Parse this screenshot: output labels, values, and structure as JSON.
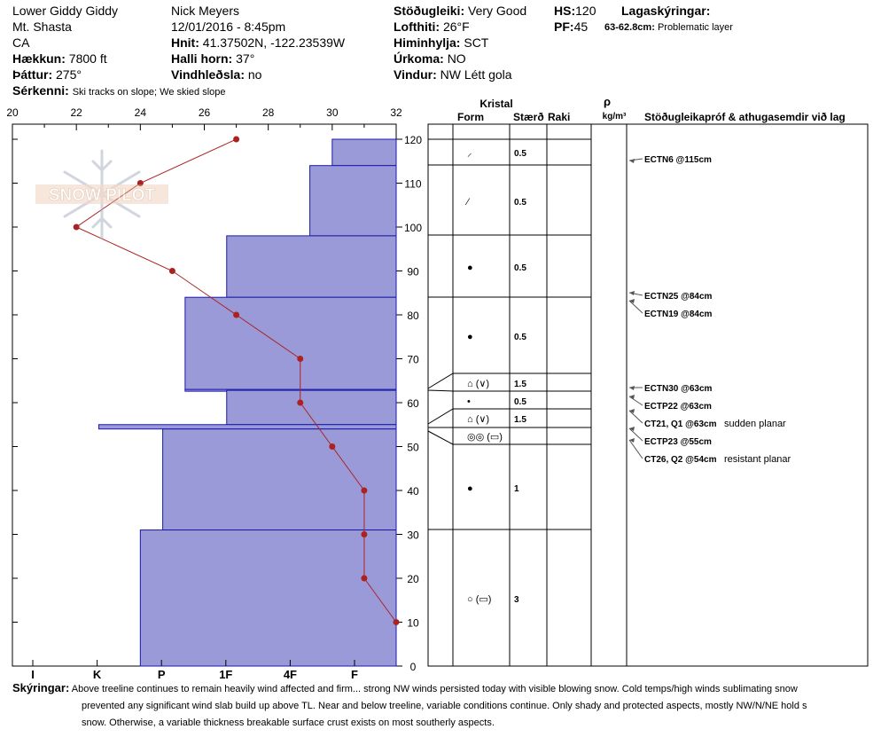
{
  "header": {
    "location": "Lower Giddy Giddy",
    "mountain": "Mt. Shasta",
    "state": "CA",
    "elevation_label": "Hækkun:",
    "elevation": "7800 ft",
    "aspect_label": "Þáttur:",
    "aspect": "275°",
    "observer": "Nick Meyers",
    "datetime": "12/01/2016 - 8:45pm",
    "coords_label": "Hnit:",
    "coords": "41.37502N, -122.23539W",
    "slope_label": "Halli horn:",
    "slope": "37°",
    "wind_loading_label": "Vindhleðsla:",
    "wind_loading": "no",
    "stability_label": "Stöðugleiki:",
    "stability": "Very Good",
    "air_temp_label": "Lofthiti:",
    "air_temp": "26°F",
    "sky_label": "Himinhylja:",
    "sky": "SCT",
    "precip_label": "Úrkoma:",
    "precip": "NO",
    "wind_label": "Vindur:",
    "wind": "NW Létt gola",
    "hs_label": "HS:",
    "hs": "120",
    "pf_label": "PF:",
    "pf": "45",
    "layers_label": "Lagaskýringar:",
    "layer_note_depth": "63-62.8cm:",
    "layer_note": "Problematic layer",
    "features_label": "Sérkenni:",
    "features": "Ski tracks on slope; We skied slope"
  },
  "logo_text": "SNOW PILOT",
  "table_headers": {
    "crystal": "Kristal",
    "form": "Form",
    "size": "Stærð",
    "moisture": "Raki",
    "rho": "ρ",
    "density_unit": "kg/m³",
    "tests": "Stöðugleikapróf & athugasemdir við lag"
  },
  "colors": {
    "hardness_fill": "#9a9ad8",
    "hardness_line": "#1a1aa8",
    "temp_line": "#aa2222"
  },
  "chart_data": {
    "type": "snow-profile",
    "temp_axis": {
      "ticks": [
        20,
        22,
        24,
        26,
        28,
        30,
        32
      ],
      "range": [
        20,
        32
      ]
    },
    "depth_axis": {
      "ticks": [
        0,
        10,
        20,
        30,
        40,
        50,
        60,
        70,
        80,
        90,
        100,
        110,
        120
      ],
      "range": [
        0,
        120
      ]
    },
    "hardness_axis": {
      "labels": [
        "I",
        "K",
        "P",
        "1F",
        "4F",
        "F"
      ]
    },
    "temperature_profile": [
      {
        "depth": 120,
        "temp": 27
      },
      {
        "depth": 110,
        "temp": 24
      },
      {
        "depth": 100,
        "temp": 22
      },
      {
        "depth": 90,
        "temp": 25
      },
      {
        "depth": 80,
        "temp": 27
      },
      {
        "depth": 70,
        "temp": 29
      },
      {
        "depth": 60,
        "temp": 29
      },
      {
        "depth": 50,
        "temp": 30
      },
      {
        "depth": 40,
        "temp": 31
      },
      {
        "depth": 30,
        "temp": 31
      },
      {
        "depth": 20,
        "temp": 31
      },
      {
        "depth": 10,
        "temp": 32
      }
    ],
    "layers": [
      {
        "top": 120,
        "bottom": 114,
        "hardness_temp_pos": 30.0,
        "form": "⸝",
        "size": "0.5"
      },
      {
        "top": 114,
        "bottom": 98,
        "hardness_temp_pos": 29.3,
        "form": "⁄",
        "size": "0.5"
      },
      {
        "top": 98,
        "bottom": 84,
        "hardness_temp_pos": 26.7,
        "form": "●",
        "size": "0.5"
      },
      {
        "top": 84,
        "bottom": 63,
        "hardness_temp_pos": 25.4,
        "form": "●",
        "size": "0.5"
      },
      {
        "top": 63,
        "bottom": 62.8,
        "hardness_temp_pos": 25.4,
        "form": "⌂ (∨)",
        "size": "1.5"
      },
      {
        "top": 62.8,
        "bottom": 55,
        "hardness_temp_pos": 26.7,
        "form": "•",
        "size": "0.5"
      },
      {
        "top": 55,
        "bottom": 54,
        "hardness_temp_pos": 22.7,
        "form": "⌂ (∨)",
        "size": "1.5"
      },
      {
        "top": 54,
        "bottom": 31,
        "hardness_temp_pos": 24.7,
        "form": "◎◎ (▭)",
        "size": ""
      },
      {
        "top": 31,
        "bottom": 0,
        "hardness_temp_pos": 24.0,
        "form": "●",
        "size": "1"
      }
    ],
    "crystal_rows": [
      {
        "form": "⸝",
        "size": "0.5",
        "depth": 116
      },
      {
        "form": "⁄",
        "size": "0.5",
        "depth": 105
      },
      {
        "form": "●",
        "size": "0.5",
        "depth": 91
      },
      {
        "form": "●",
        "size": "0.5",
        "depth": 75
      },
      {
        "form": "⌂ (∨)",
        "size": "1.5",
        "depth": 64
      },
      {
        "form": "•",
        "size": "0.5",
        "depth": 60
      },
      {
        "form": "⌂ (∨)",
        "size": "1.5",
        "depth": 56
      },
      {
        "form": "◎◎ (▭)",
        "size": "",
        "depth": 52
      },
      {
        "form": "●",
        "size": "1",
        "depth": 41
      },
      {
        "form": "○ (▭)",
        "size": "3",
        "depth": 16
      }
    ],
    "tests": [
      {
        "label": "ECTN6 @115cm",
        "note": "",
        "depth": 115
      },
      {
        "label": "ECTN25 @84cm",
        "note": "",
        "depth": 84
      },
      {
        "label": "ECTN19 @84cm",
        "note": "",
        "depth": 84
      },
      {
        "label": "ECTN30 @63cm",
        "note": "",
        "depth": 63
      },
      {
        "label": "ECTP22 @63cm",
        "note": "",
        "depth": 63
      },
      {
        "label": "CT21, Q1 @63cm",
        "note": "sudden planar",
        "depth": 63
      },
      {
        "label": "ECTP23 @55cm",
        "note": "",
        "depth": 55
      },
      {
        "label": "CT26, Q2 @54cm",
        "note": "resistant planar",
        "depth": 54
      }
    ]
  },
  "comments": {
    "label": "Skýringar:",
    "line1": "Above treeline continues to remain heavily wind affected and firm... strong NW winds persisted today with visible blowing snow. Cold temps/high winds sublimating snow",
    "line2": "prevented any significant wind slab build up above TL. Near and below treeline, variable conditions continue. Only shady and protected aspects, mostly NW/N/NE hold s",
    "line3": "snow. Otherwise, a variable thickness breakable surface crust exists on most southerly aspects."
  }
}
